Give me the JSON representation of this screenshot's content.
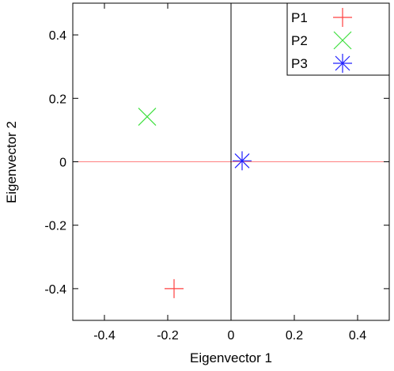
{
  "chart_data": {
    "type": "scatter",
    "xlabel": "Eigenvector 1",
    "ylabel": "Eigenvector 2",
    "xlim": [
      -0.5,
      0.5
    ],
    "ylim": [
      -0.5,
      0.5
    ],
    "x_ticks": [
      -0.4,
      -0.2,
      0,
      0.2,
      0.4
    ],
    "x_tick_labels": [
      "-0.4",
      "-0.2",
      "0",
      "0.2",
      "0.4"
    ],
    "y_ticks": [
      -0.4,
      -0.2,
      0,
      0.2,
      0.4
    ],
    "y_tick_labels": [
      "-0.4",
      "-0.2",
      "0",
      "0.2",
      "0.4"
    ],
    "grid": false,
    "legend_position": "top-right",
    "zero_lines": {
      "horizontal_color": "#ff8080",
      "vertical_color": "#000000"
    },
    "series": [
      {
        "name": "P1",
        "marker": "plus",
        "color": "#ff4040",
        "points": [
          {
            "x": -0.18,
            "y": -0.4
          }
        ]
      },
      {
        "name": "P2",
        "marker": "cross",
        "color": "#40e040",
        "points": [
          {
            "x": -0.265,
            "y": 0.142
          }
        ]
      },
      {
        "name": "P3",
        "marker": "asterisk",
        "color": "#2020ff",
        "points": [
          {
            "x": 0.035,
            "y": 0.003
          }
        ]
      }
    ]
  }
}
